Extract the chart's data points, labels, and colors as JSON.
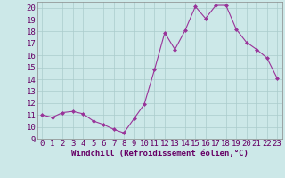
{
  "x": [
    0,
    1,
    2,
    3,
    4,
    5,
    6,
    7,
    8,
    9,
    10,
    11,
    12,
    13,
    14,
    15,
    16,
    17,
    18,
    19,
    20,
    21,
    22,
    23
  ],
  "y": [
    11,
    10.8,
    11.2,
    11.3,
    11.1,
    10.5,
    10.2,
    9.8,
    9.5,
    10.7,
    11.9,
    14.8,
    17.9,
    16.5,
    18.1,
    20.1,
    19.1,
    20.2,
    20.2,
    18.2,
    17.1,
    16.5,
    15.8,
    14.1
  ],
  "line_color": "#993399",
  "marker": "D",
  "marker_color": "#993399",
  "xlabel": "Windchill (Refroidissement éolien,°C)",
  "ylabel_ticks": [
    9,
    10,
    11,
    12,
    13,
    14,
    15,
    16,
    17,
    18,
    19,
    20
  ],
  "ylim": [
    9,
    20.5
  ],
  "xlim": [
    -0.5,
    23.5
  ],
  "bg_color": "#cce8e8",
  "grid_color": "#aacccc",
  "xlabel_fontsize": 6.5,
  "tick_fontsize": 6.5,
  "text_color": "#660066"
}
